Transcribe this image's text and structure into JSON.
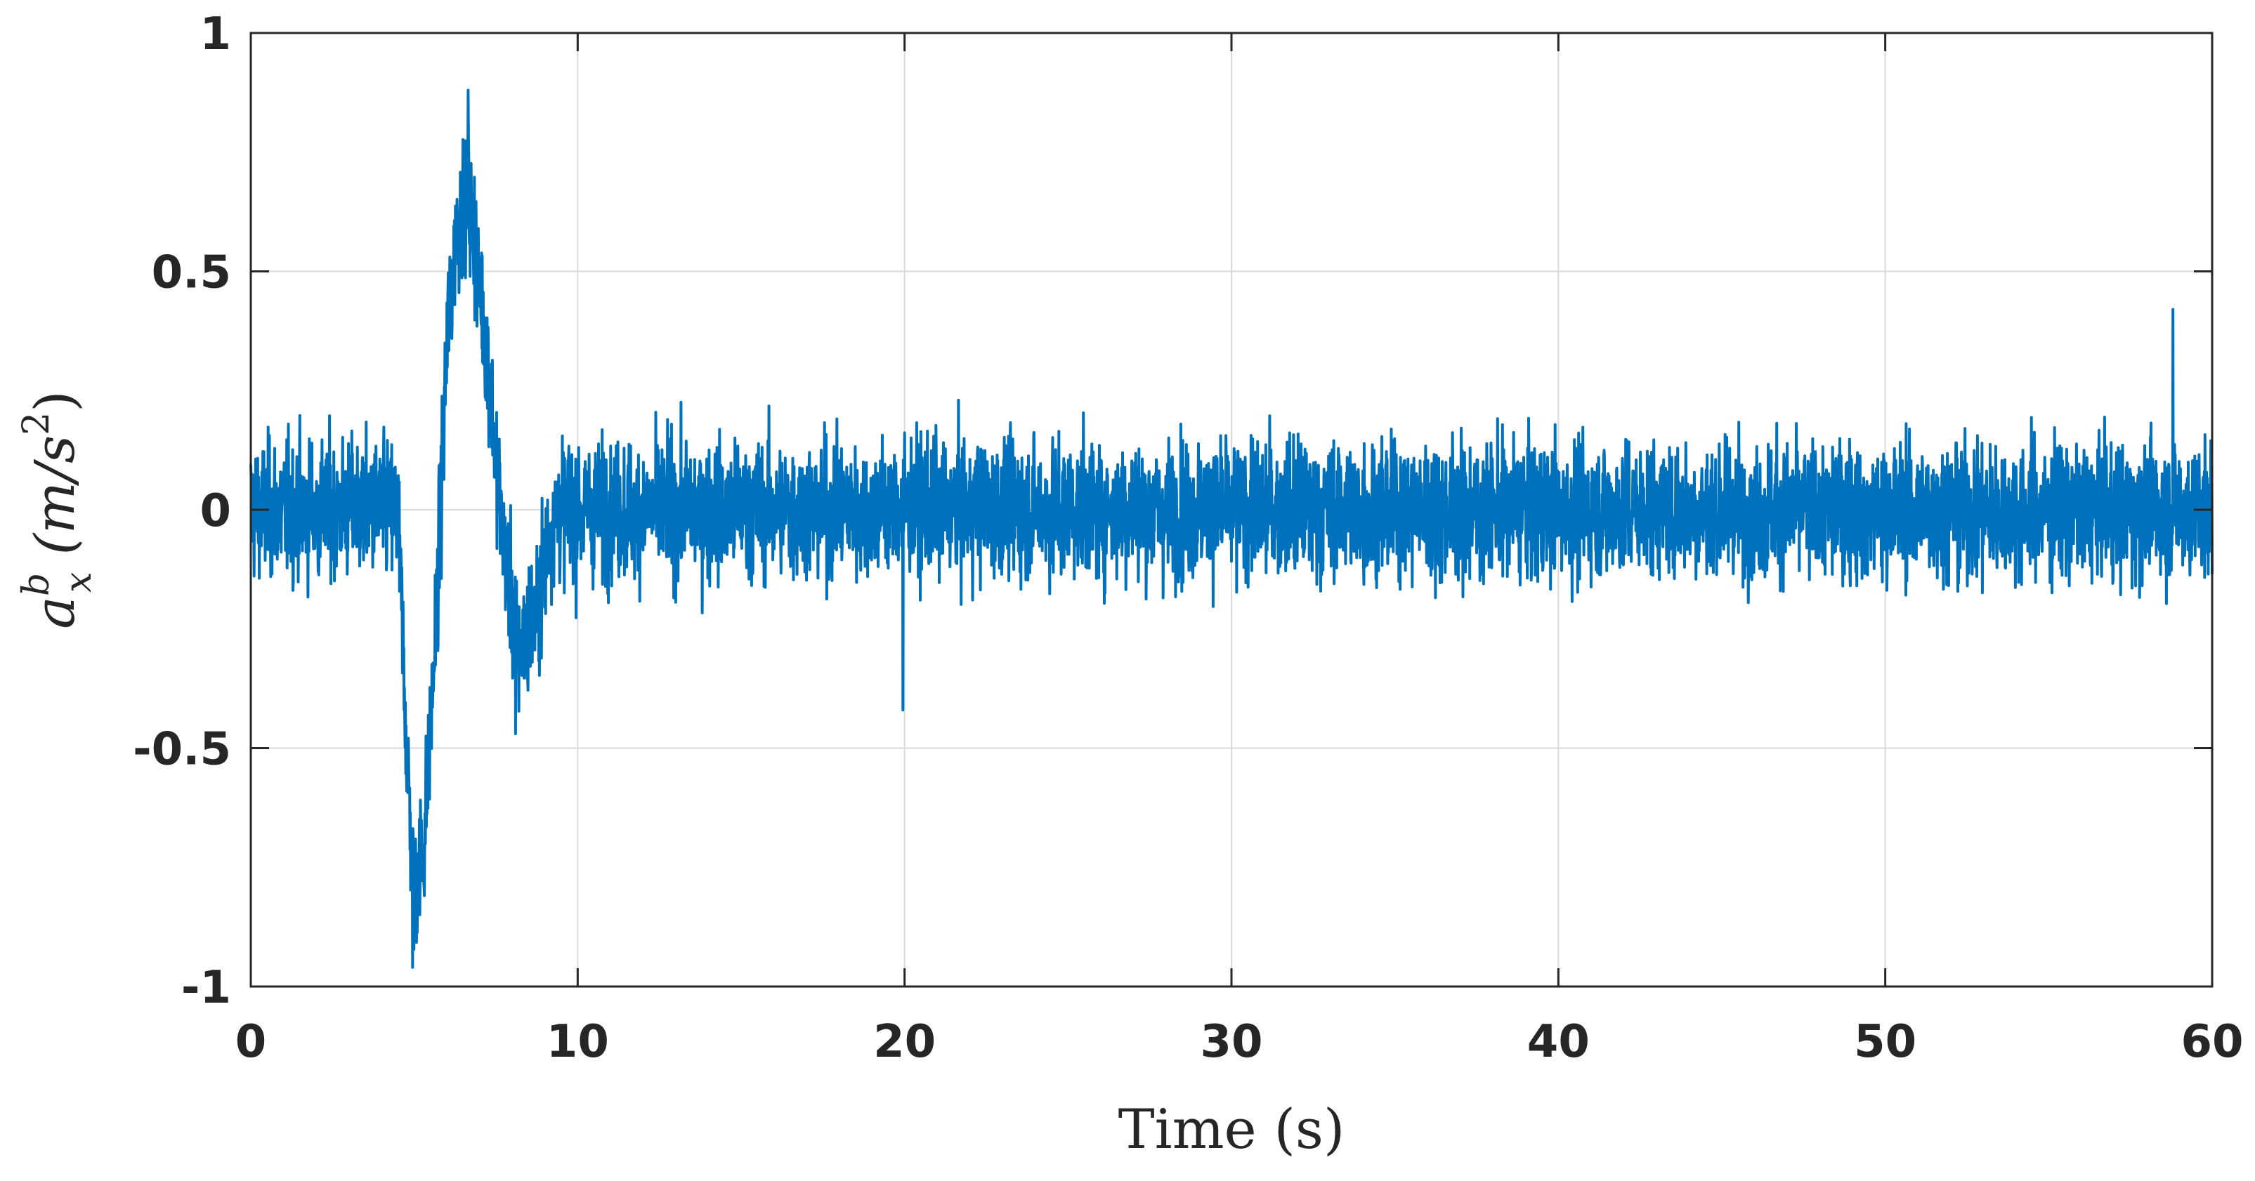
{
  "chart_data": {
    "type": "line",
    "title": "",
    "xlabel": "Time (s)",
    "ylabel": {
      "base": "a",
      "superscript": "b",
      "subscript": "x",
      "unit_open": "(m/s",
      "unit_power": "2",
      "unit_close": ")"
    },
    "xlim": [
      0,
      60
    ],
    "ylim": [
      -1,
      1
    ],
    "xticks": [
      0,
      10,
      20,
      30,
      40,
      50,
      60
    ],
    "xtick_labels": [
      "0",
      "10",
      "20",
      "30",
      "40",
      "50",
      "60"
    ],
    "yticks": [
      -1,
      -0.5,
      0,
      0.5,
      1
    ],
    "ytick_labels": [
      "-1",
      "-0.5",
      "0",
      "0.5",
      "1"
    ],
    "grid": true,
    "legend": "none",
    "series": [
      {
        "color": "#0072bd",
        "sample_interval": 0.01,
        "noise_amplitude": 0.13,
        "envelope_x": [
          0,
          4.5,
          4.8,
          5.0,
          5.3,
          5.7,
          6.0,
          6.3,
          6.7,
          7.2,
          7.7,
          8.2,
          8.7,
          9.3,
          10,
          60
        ],
        "envelope_y": [
          0,
          0,
          -0.55,
          -0.8,
          -0.7,
          -0.2,
          0.35,
          0.6,
          0.65,
          0.35,
          -0.05,
          -0.3,
          -0.22,
          0,
          0,
          0
        ],
        "peaks": [
          {
            "x": 4.95,
            "y": -0.96
          },
          {
            "x": 6.65,
            "y": 0.88
          },
          {
            "x": 8.1,
            "y": -0.47
          },
          {
            "x": 19.95,
            "y": -0.42
          },
          {
            "x": 58.8,
            "y": 0.42
          }
        ]
      }
    ]
  }
}
